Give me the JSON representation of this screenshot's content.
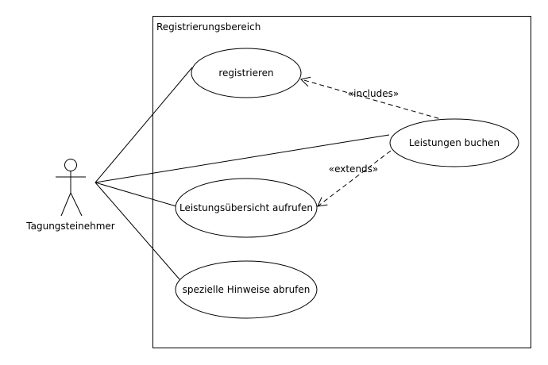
{
  "diagram": {
    "system_boundary": {
      "label": "Registrierungsbereich"
    },
    "actor": {
      "name": "Tagungsteinehmer"
    },
    "use_cases": [
      {
        "id": "registrieren",
        "label": "registrieren"
      },
      {
        "id": "leistungen-buchen",
        "label": "Leistungen buchen"
      },
      {
        "id": "leistungsuebersicht-aufrufen",
        "label": "Leistungsübersicht aufrufen"
      },
      {
        "id": "spezielle-hinweise-abrufen",
        "label": "spezielle Hinweise abrufen"
      }
    ],
    "relationships": [
      {
        "type": "include",
        "from": "leistungen-buchen",
        "to": "registrieren",
        "label": "«includes»"
      },
      {
        "type": "extend",
        "from": "leistungen-buchen",
        "to": "leistungsuebersicht-aufrufen",
        "label": "«extends»"
      }
    ],
    "associations": [
      {
        "actor": "Tagungsteinehmer",
        "use_case": "registrieren"
      },
      {
        "actor": "Tagungsteinehmer",
        "use_case": "leistungen-buchen"
      },
      {
        "actor": "Tagungsteinehmer",
        "use_case": "leistungsuebersicht-aufrufen"
      },
      {
        "actor": "Tagungsteinehmer",
        "use_case": "spezielle-hinweise-abrufen"
      }
    ],
    "colors": {
      "stroke": "#000000",
      "background": "#ffffff"
    }
  }
}
